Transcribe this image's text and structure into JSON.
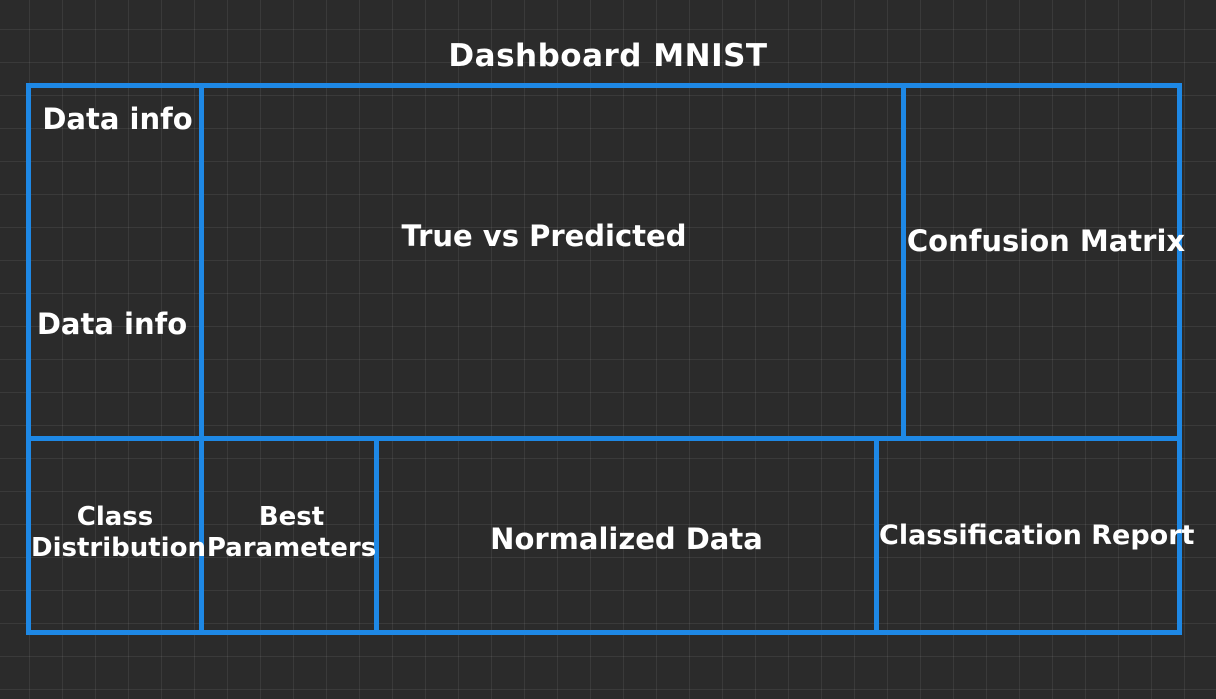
{
  "title": "Dashboard MNIST",
  "panels": {
    "data_info_top": "Data info",
    "data_info_bottom": "Data info",
    "true_vs_predicted": "True vs Predicted",
    "confusion_matrix": "Confusion Matrix",
    "class_distribution": [
      "Class",
      "Distribution"
    ],
    "best_parameters": [
      "Best",
      "Parameters"
    ],
    "normalized_data": "Normalized Data",
    "classification_report": "Classification Report"
  },
  "colors": {
    "background": "#2b2b2b",
    "frame": "#1e88e5",
    "text": "#ffffff"
  }
}
